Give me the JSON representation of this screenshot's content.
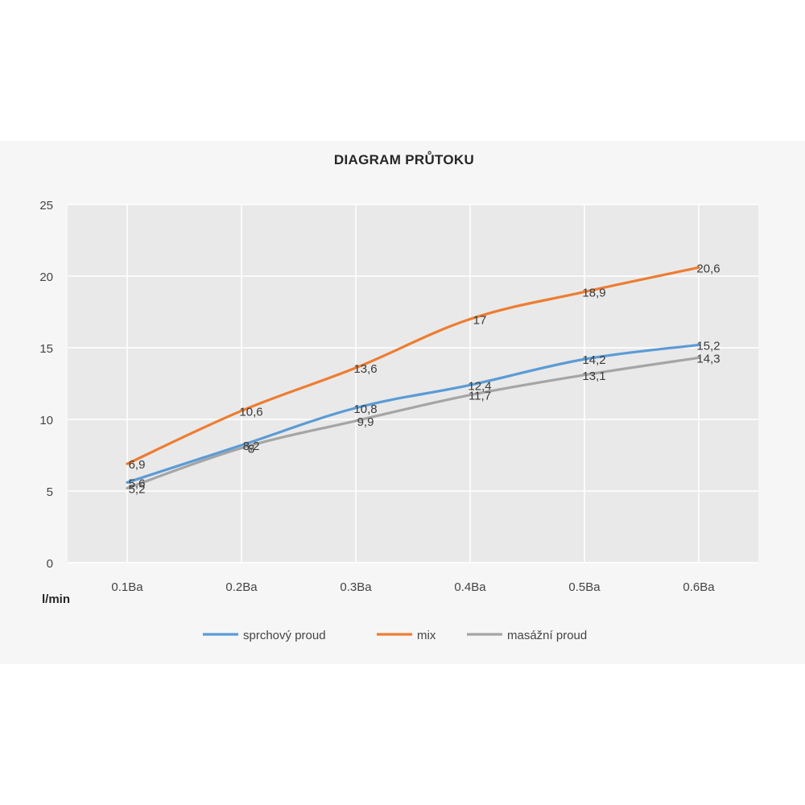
{
  "chart_data": {
    "type": "line",
    "title": "DIAGRAM PRŮTOKU",
    "xlabel": "",
    "ylabel": "l/min",
    "categories": [
      "0.1Ba",
      "0.2Ba",
      "0.3Ba",
      "0.4Ba",
      "0.5Ba",
      "0.6Ba"
    ],
    "ylim": [
      0,
      25
    ],
    "yticks": [
      "0",
      "5",
      "10",
      "15",
      "20",
      "25"
    ],
    "grid": true,
    "legend": "bottom",
    "series": [
      {
        "name": "sprchový proud",
        "color": "#5b9bd5",
        "values": [
          5.6,
          8.2,
          10.8,
          12.4,
          14.2,
          15.2
        ],
        "labels": [
          "5,6",
          "8,2",
          "10,8",
          "12,4",
          "14,2",
          "15,2"
        ]
      },
      {
        "name": "mix",
        "color": "#ed7d31",
        "values": [
          6.9,
          10.6,
          13.6,
          17,
          18.9,
          20.6
        ],
        "labels": [
          "6,9",
          "10,6",
          "13,6",
          "17",
          "18,9",
          "20,6"
        ]
      },
      {
        "name": "masážní proud",
        "color": "#a5a5a5",
        "values": [
          5.2,
          8,
          9.9,
          11.7,
          13.1,
          14.3
        ],
        "labels": [
          "5,2",
          "8",
          "9,9",
          "11,7",
          "13,1",
          "14,3"
        ]
      }
    ]
  }
}
